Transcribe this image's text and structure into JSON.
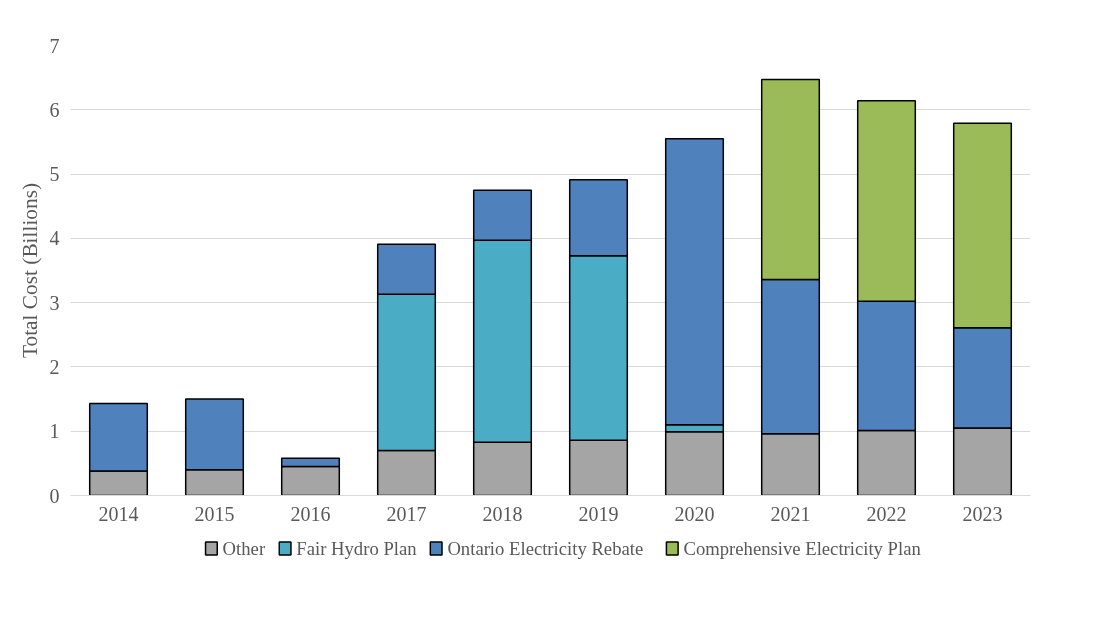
{
  "chart_data": {
    "type": "bar",
    "stacked": true,
    "ylabel": "Total Cost (Billions)",
    "categories": [
      "2014",
      "2015",
      "2016",
      "2017",
      "2018",
      "2019",
      "2020",
      "2021",
      "2022",
      "2023"
    ],
    "series": [
      {
        "name": "Other",
        "color": "#a5a5a5",
        "values": [
          0.38,
          0.4,
          0.45,
          0.7,
          0.83,
          0.86,
          0.99,
          0.96,
          1.01,
          1.05
        ]
      },
      {
        "name": "Fair Hydro Plan",
        "color": "#4bacc6",
        "values": [
          0,
          0,
          0,
          2.43,
          3.14,
          2.87,
          0.11,
          null,
          null,
          0
        ]
      },
      {
        "name": "Ontario Electricity Rebate",
        "color": "#4f81bd",
        "values": [
          1.05,
          1.1,
          0.13,
          0.78,
          0.78,
          1.18,
          4.45,
          2.4,
          2.01,
          1.56
        ]
      },
      {
        "name": "Comprehensive Electricity Plan",
        "color": "#9bbb59",
        "values": [
          0,
          0,
          0,
          0,
          0,
          0,
          0,
          3.11,
          3.12,
          3.18
        ]
      }
    ],
    "ylim": [
      0,
      7
    ],
    "yticks": [
      0,
      1,
      2,
      3,
      4,
      5,
      6,
      7
    ],
    "grid": "y",
    "legend": "bottom"
  }
}
